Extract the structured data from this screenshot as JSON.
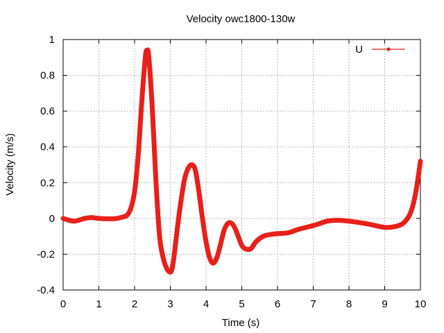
{
  "chart_data": {
    "type": "line",
    "title": "Velocity owc1800-130w",
    "xlabel": "Time (s)",
    "ylabel": "Velocity (m/s)",
    "xlim": [
      0,
      10
    ],
    "ylim": [
      -0.4,
      1
    ],
    "xticks": [
      0,
      1,
      2,
      3,
      4,
      5,
      6,
      7,
      8,
      9,
      10
    ],
    "xtick_labels": [
      "0",
      "1",
      "2",
      "3",
      "4",
      "5",
      "6",
      "7",
      "8",
      "9",
      "10"
    ],
    "yticks": [
      -0.4,
      -0.2,
      0,
      0.2,
      0.4,
      0.6,
      0.8,
      1
    ],
    "ytick_labels": [
      "-0.4",
      "-0.2",
      "0",
      "0.2",
      "0.4",
      "0.6",
      "0.8",
      "1"
    ],
    "grid": true,
    "legend": {
      "position": "top-right"
    },
    "colors": {
      "series": "#e8201a",
      "grid": "#a0a0a0",
      "axes": "#000000"
    },
    "series": [
      {
        "name": "U",
        "x": [
          0,
          0.3,
          0.6,
          0.8,
          1.0,
          1.3,
          1.5,
          1.7,
          1.8,
          1.9,
          2.0,
          2.1,
          2.2,
          2.3,
          2.35,
          2.4,
          2.5,
          2.6,
          2.7,
          2.8,
          2.9,
          3.0,
          3.05,
          3.1,
          3.2,
          3.3,
          3.4,
          3.5,
          3.6,
          3.7,
          3.8,
          3.9,
          4.0,
          4.1,
          4.2,
          4.3,
          4.4,
          4.5,
          4.6,
          4.7,
          4.8,
          4.9,
          5.0,
          5.1,
          5.25,
          5.4,
          5.6,
          5.8,
          6.0,
          6.3,
          6.6,
          7.0,
          7.4,
          7.7,
          8.0,
          8.5,
          9.0,
          9.3,
          9.5,
          9.6,
          9.7,
          9.8,
          9.9,
          10.0
        ],
        "y": [
          0.0,
          -0.015,
          0.0,
          0.005,
          0.0,
          -0.002,
          0.0,
          0.01,
          0.02,
          0.06,
          0.15,
          0.35,
          0.65,
          0.9,
          0.94,
          0.9,
          0.6,
          0.2,
          -0.1,
          -0.22,
          -0.28,
          -0.3,
          -0.28,
          -0.22,
          -0.05,
          0.1,
          0.22,
          0.28,
          0.3,
          0.27,
          0.15,
          0.0,
          -0.13,
          -0.22,
          -0.25,
          -0.22,
          -0.15,
          -0.07,
          -0.03,
          -0.025,
          -0.05,
          -0.1,
          -0.15,
          -0.17,
          -0.17,
          -0.13,
          -0.1,
          -0.09,
          -0.085,
          -0.08,
          -0.06,
          -0.04,
          -0.015,
          -0.01,
          -0.015,
          -0.03,
          -0.05,
          -0.045,
          -0.03,
          -0.01,
          0.02,
          0.08,
          0.18,
          0.32
        ]
      }
    ]
  }
}
